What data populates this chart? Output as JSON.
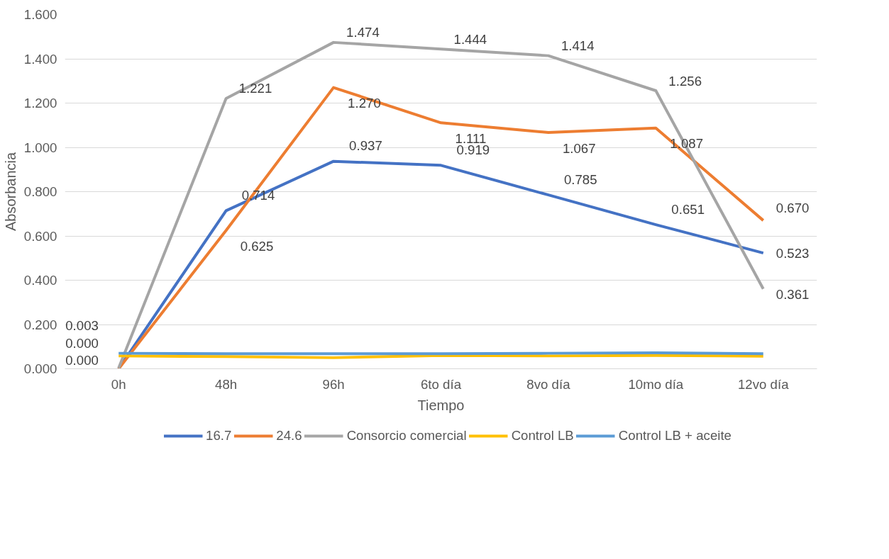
{
  "chart_data": {
    "type": "line",
    "xlabel": "Tiempo",
    "ylabel": "Absorbancia",
    "categories": [
      "0h",
      "48h",
      "96h",
      "6to día",
      "8vo día",
      "10mo día",
      "12vo día"
    ],
    "ylim": [
      0,
      1.6
    ],
    "yticks": [
      {
        "value": 0,
        "label": "0.000"
      },
      {
        "value": 0.2,
        "label": "0.200"
      },
      {
        "value": 0.4,
        "label": "0.400"
      },
      {
        "value": 0.6,
        "label": "0.600"
      },
      {
        "value": 0.8,
        "label": "0.800"
      },
      {
        "value": 1.0,
        "label": "1.000"
      },
      {
        "value": 1.2,
        "label": "1.200"
      },
      {
        "value": 1.4,
        "label": "1.400"
      },
      {
        "value": 1.6,
        "label": "1.600"
      }
    ],
    "grid": "y",
    "legend": "bottom",
    "marker": "none",
    "line_style": "solid",
    "series": [
      {
        "name": "16.7",
        "color": "#4472c4",
        "values": [
          0.0,
          0.714,
          0.937,
          0.919,
          0.785,
          0.651,
          0.523
        ],
        "value_labels": [
          "0.000",
          "0.714",
          "0.937",
          "0.919",
          "0.785",
          "0.651",
          "0.523"
        ]
      },
      {
        "name": "24.6",
        "color": "#ed7d31",
        "values": [
          0.0,
          0.625,
          1.27,
          1.111,
          1.067,
          1.087,
          0.67
        ],
        "value_labels": [
          "0.000",
          "0.625",
          "1.270",
          "1.111",
          "1.067",
          "1.087",
          "0.670"
        ]
      },
      {
        "name": "Consorcio comercial",
        "color": "#a5a5a5",
        "values": [
          0.003,
          1.221,
          1.474,
          1.444,
          1.414,
          1.256,
          0.361
        ],
        "value_labels": [
          "0.003",
          "1.221",
          "1.474",
          "1.444",
          "1.414",
          "1.256",
          "0.361"
        ]
      },
      {
        "name": "Control LB",
        "color": "#ffc000",
        "values": [
          0.058,
          0.055,
          0.05,
          0.06,
          0.058,
          0.06,
          0.057
        ]
      },
      {
        "name": "Control LB + aceite",
        "color": "#5b9bd5",
        "values": [
          0.07,
          0.068,
          0.068,
          0.068,
          0.07,
          0.072,
          0.068
        ]
      }
    ]
  }
}
